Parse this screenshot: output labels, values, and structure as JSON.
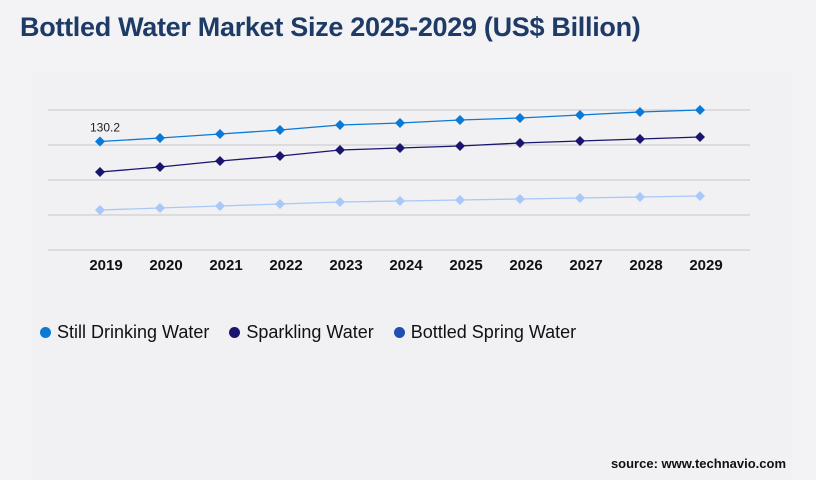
{
  "chart_data": {
    "type": "line",
    "title": "Bottled Water Market Size 2025-2029 (US$ Billion)",
    "xlabel": "",
    "ylabel": "",
    "categories": [
      "2019",
      "2020",
      "2021",
      "2022",
      "2023",
      "2024",
      "2025",
      "2026",
      "2027",
      "2028",
      "2029"
    ],
    "ylim": [
      0,
      168
    ],
    "grid": true,
    "legend_position": "bottom-left",
    "annotations": [
      {
        "category": "2019",
        "series": "Still Drinking Water",
        "text": "130.2"
      }
    ],
    "series": [
      {
        "name": "Still Drinking Water",
        "color": "#0a7ad6",
        "marker_color": "#0a7ad6",
        "values": [
          130.2,
          134.4,
          139.2,
          144,
          150,
          152.4,
          156,
          158.4,
          162,
          165.6,
          168
        ]
      },
      {
        "name": "Sparkling Water",
        "color": "#1a1670",
        "marker_color": "#1a1670",
        "values": [
          93.6,
          99.6,
          106.8,
          112.8,
          120,
          122.4,
          124.8,
          128.4,
          130.8,
          133.2,
          135.6
        ]
      },
      {
        "name": "Bottled Spring Water",
        "color": "#a8c8f8",
        "marker_color": "#1f4fb0",
        "values": [
          48,
          50.4,
          52.8,
          55.2,
          57.6,
          58.8,
          60,
          61.2,
          62.4,
          63.6,
          64.8
        ]
      }
    ]
  },
  "source": "source: www.technavio.com"
}
